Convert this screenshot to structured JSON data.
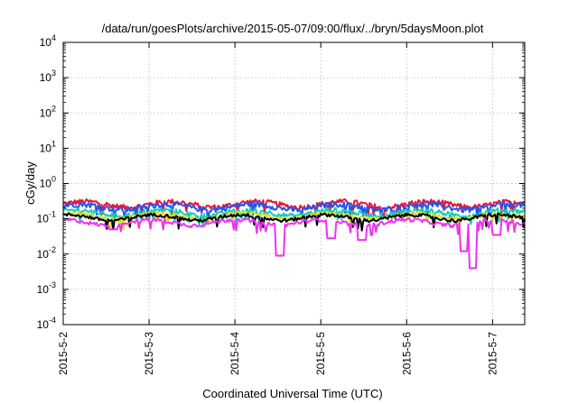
{
  "chart_data": {
    "type": "line",
    "title": "/data/run/goesPlots/archive/2015-05-07/09:00/flux/../bryn/5daysMoon.plot",
    "xlabel": "Coordinated Universal Time (UTC)",
    "ylabel": "cGy/day",
    "y_scale": "log",
    "ylim": [
      0.0001,
      10000
    ],
    "yticks": [
      {
        "base": "10",
        "exp": "-4",
        "value": 0.0001
      },
      {
        "base": "10",
        "exp": "-3",
        "value": 0.001
      },
      {
        "base": "10",
        "exp": "-2",
        "value": 0.01
      },
      {
        "base": "10",
        "exp": "-1",
        "value": 0.1
      },
      {
        "base": "10",
        "exp": "0",
        "value": 1
      },
      {
        "base": "10",
        "exp": "1",
        "value": 10
      },
      {
        "base": "10",
        "exp": "2",
        "value": 100
      },
      {
        "base": "10",
        "exp": "3",
        "value": 1000
      },
      {
        "base": "10",
        "exp": "4",
        "value": 10000
      }
    ],
    "x_start": "2015-05-02T00:00",
    "x_end": "2015-05-07T09:00",
    "xticks": [
      {
        "label": "2015-5-2",
        "value": "2015-05-02T00:00"
      },
      {
        "label": "2015-5-3",
        "value": "2015-05-03T00:00"
      },
      {
        "label": "2015-5-4",
        "value": "2015-05-04T00:00"
      },
      {
        "label": "2015-5-5",
        "value": "2015-05-05T00:00"
      },
      {
        "label": "2015-5-6",
        "value": "2015-05-06T00:00"
      },
      {
        "label": "2015-5-7",
        "value": "2015-05-07T00:00"
      }
    ],
    "grid": true,
    "legend": "none",
    "series": [
      {
        "color": "#ee1133",
        "level": 0.26,
        "variation": 0.35,
        "dips": []
      },
      {
        "color": "#2255ee",
        "level": 0.22,
        "variation": 0.35,
        "dips": []
      },
      {
        "color": "#11ccbb",
        "level": 0.15,
        "variation": 0.3,
        "dips": []
      },
      {
        "color": "#dddd22",
        "level": 0.12,
        "variation": 0.25,
        "dips": []
      },
      {
        "color": "#000000",
        "level": 0.11,
        "variation": 0.22,
        "dips": []
      },
      {
        "color": "#ee33ee",
        "level": 0.08,
        "variation": 0.25,
        "dips": [
          {
            "x": "2015-05-02T14:00",
            "y": 0.05
          },
          {
            "x": "2015-05-04T12:30",
            "y": 0.009
          },
          {
            "x": "2015-05-05T03:00",
            "y": 0.028
          },
          {
            "x": "2015-05-05T11:30",
            "y": 0.025
          },
          {
            "x": "2015-05-06T16:00",
            "y": 0.012
          },
          {
            "x": "2015-05-06T18:30",
            "y": 0.004
          },
          {
            "x": "2015-05-07T01:00",
            "y": 0.035
          }
        ]
      }
    ]
  }
}
